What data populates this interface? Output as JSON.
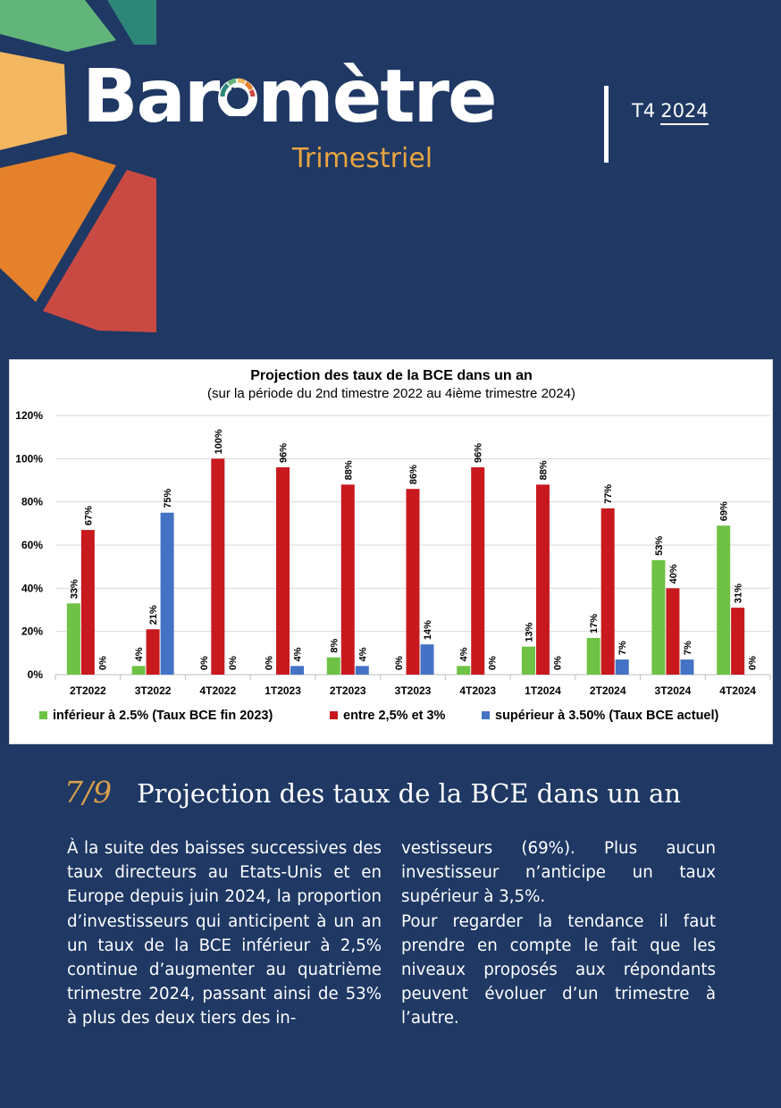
{
  "header": {
    "title_parts": [
      "Bar",
      "mètre"
    ],
    "subtitle": "Trimestriel",
    "issue_quarter": "T4",
    "issue_year": "2024"
  },
  "colors": {
    "background": "#1f3864",
    "accent_gold": "#e8a541",
    "series_green": "#6ec245",
    "series_red": "#c8191e",
    "series_blue": "#4472c4"
  },
  "chart_data": {
    "type": "bar",
    "title": "Projection des taux de la BCE dans un an",
    "subtitle": "(sur la période du 2nd timestre 2022 au 4ième trimestre 2024)",
    "categories": [
      "2T2022",
      "3T2022",
      "4T2022",
      "1T2023",
      "2T2023",
      "3T2023",
      "4T2023",
      "1T2024",
      "2T2024",
      "3T2024",
      "4T2024"
    ],
    "series": [
      {
        "name": "inférieur à 2.5% (Taux BCE fin 2023)",
        "color": "#6ec245",
        "values": [
          33,
          4,
          0,
          0,
          8,
          0,
          4,
          13,
          17,
          53,
          69
        ]
      },
      {
        "name": "entre 2,5% et 3%",
        "color": "#c8191e",
        "values": [
          67,
          21,
          100,
          96,
          88,
          86,
          96,
          88,
          77,
          40,
          31
        ]
      },
      {
        "name": "supérieur à 3.50% (Taux BCE actuel)",
        "color": "#4472c4",
        "values": [
          0,
          75,
          0,
          4,
          4,
          14,
          0,
          0,
          7,
          7,
          0
        ]
      }
    ],
    "ylim": [
      0,
      120
    ],
    "yticks": [
      "0%",
      "20%",
      "40%",
      "60%",
      "80%",
      "100%",
      "120%"
    ],
    "grid": true,
    "legend": "bottom"
  },
  "section": {
    "number": "7/9",
    "heading": "Projection des taux de la BCE dans un an"
  },
  "body": {
    "col1": "À la suite des baisses successives des taux directeurs au Etats-Unis et en Europe depuis juin 2024, la proportion d’investisseurs qui anticipent à un an un taux de la BCE inférieur à 2,5% continue d’augmenter au quatrième trimestre 2024, passant ainsi de 53% à plus des deux tiers des in-",
    "col2_p1": "vestisseurs (69%). Plus aucun investisseur n’anticipe un taux supérieur à 3,5%.",
    "col2_p2": "Pour regarder la tendance il faut prendre en compte le fait que les niveaux proposés aux répondants peuvent évoluer d’un trimestre à l’autre."
  }
}
